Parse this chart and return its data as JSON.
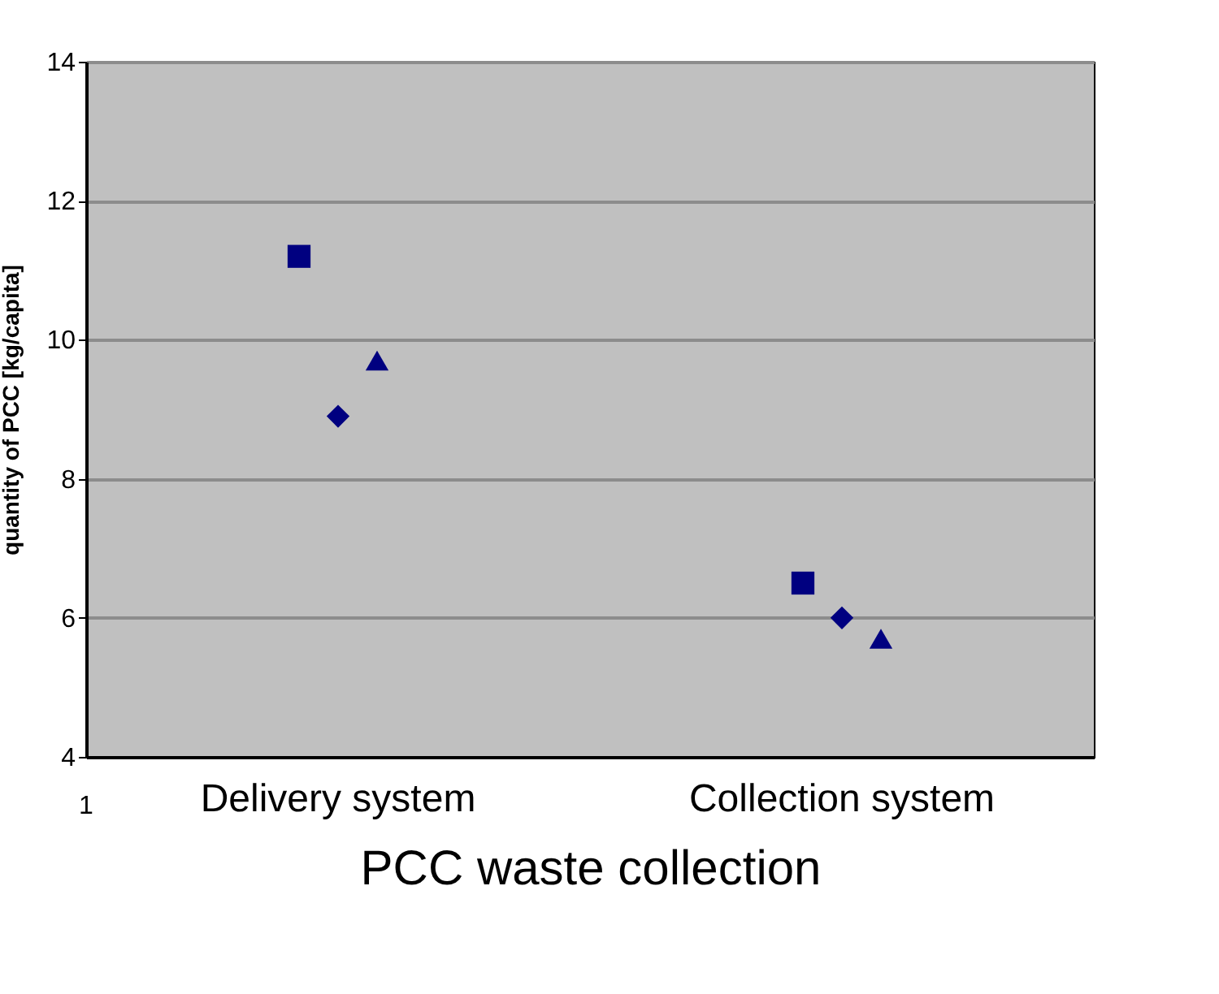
{
  "chart_data": {
    "type": "scatter",
    "xlabel": "PCC waste collection",
    "ylabel": "quantity of PCC [kg/capita]",
    "categories": [
      "Delivery system",
      "Collection system"
    ],
    "series": [
      {
        "color": "#000080",
        "marker": "square",
        "values": [
          11.2,
          6.5
        ]
      },
      {
        "color": "#000080",
        "marker": "diamond",
        "values": [
          8.9,
          6.0
        ]
      },
      {
        "color": "#000080",
        "marker": "triangle",
        "values": [
          9.7,
          5.7
        ]
      }
    ],
    "ylim": [
      4,
      14
    ],
    "yticks": [
      4,
      6,
      8,
      10,
      12,
      14
    ],
    "grid": "y",
    "annotations": [
      "1"
    ]
  }
}
